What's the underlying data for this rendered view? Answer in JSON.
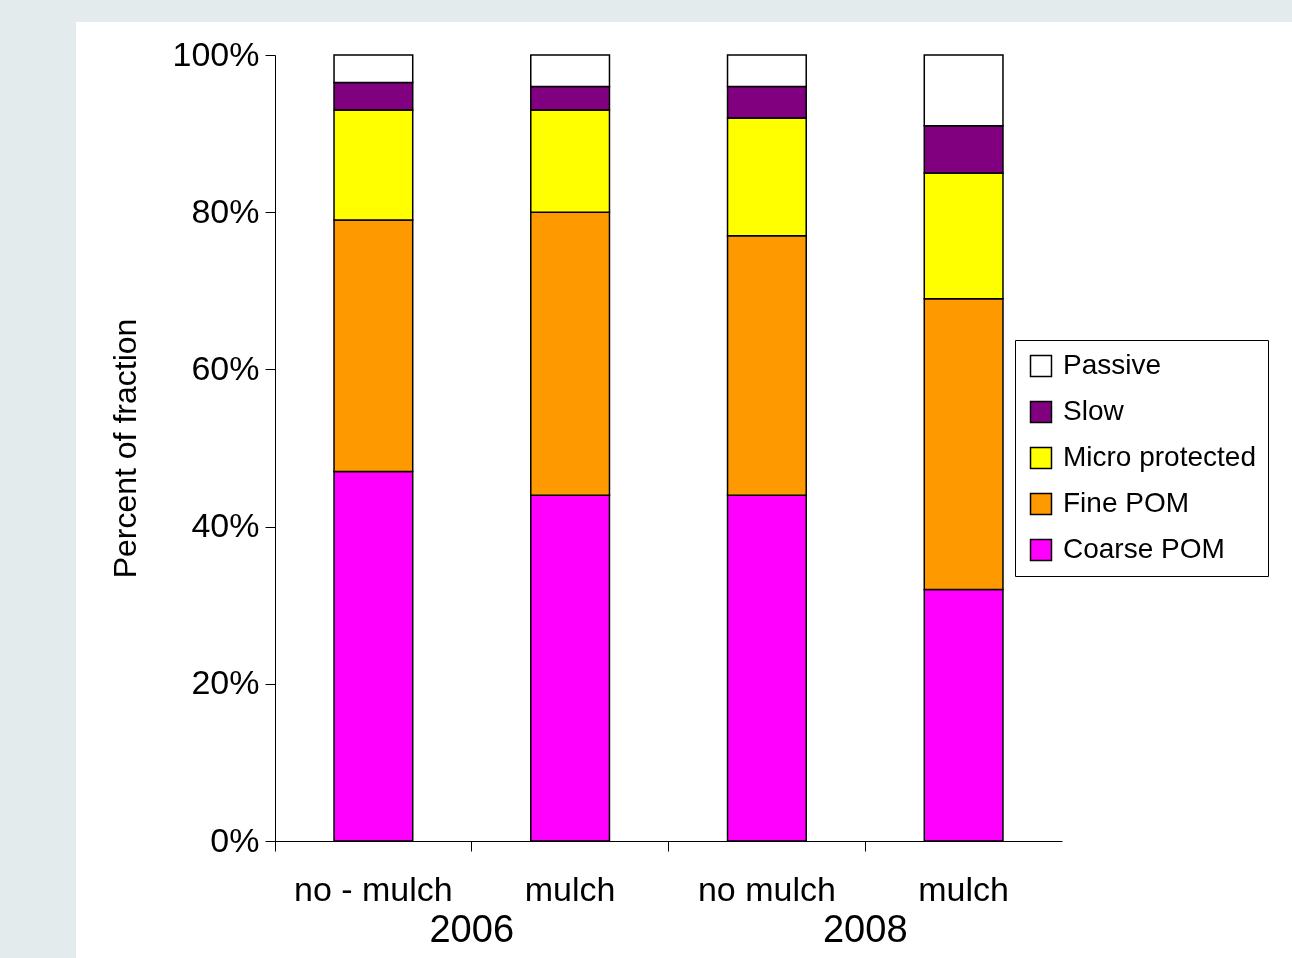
{
  "chart_data": {
    "type": "bar",
    "stacked": true,
    "ylabel": "Percent of fraction",
    "categories": [
      "no - mulch",
      "mulch",
      "no mulch",
      "mulch"
    ],
    "annotations": [
      "2006",
      "2008"
    ],
    "series": [
      {
        "name": "Coarse POM",
        "color": "#ff00ff",
        "values": [
          47,
          44,
          44,
          32
        ]
      },
      {
        "name": "Fine POM",
        "color": "#ff9900",
        "values": [
          32,
          36,
          33,
          37
        ]
      },
      {
        "name": "Micro protected",
        "color": "#ffff00",
        "values": [
          14,
          13,
          15,
          16
        ]
      },
      {
        "name": "Slow",
        "color": "#800080",
        "values": [
          3.5,
          3,
          4,
          6
        ]
      },
      {
        "name": "Passive",
        "color": "#ffffff",
        "values": [
          3.5,
          4,
          4,
          9
        ]
      }
    ],
    "ylim": [
      0,
      100
    ],
    "yticks": [
      {
        "value": 0,
        "label": "0%"
      },
      {
        "value": 20,
        "label": "20%"
      },
      {
        "value": 40,
        "label": "40%"
      },
      {
        "value": 60,
        "label": "60%"
      },
      {
        "value": 80,
        "label": "80%"
      },
      {
        "value": 100,
        "label": "100%"
      }
    ],
    "grid": false,
    "legend": "right"
  }
}
